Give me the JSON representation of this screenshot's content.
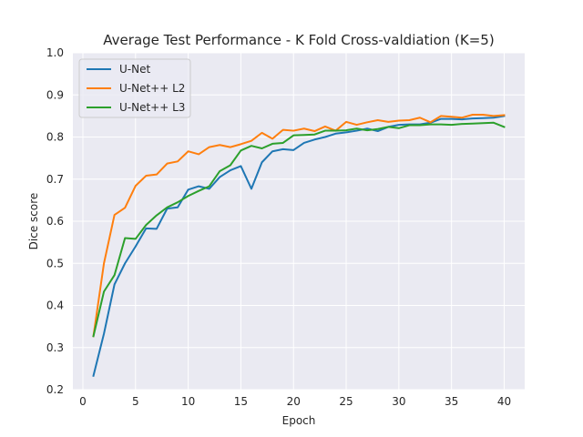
{
  "chart_data": {
    "type": "line",
    "title": "Average Test Performance - K Fold Cross-valdiation (K=5)",
    "xlabel": "Epoch",
    "ylabel": "Dice score",
    "xlim": [
      -0.95,
      41.95
    ],
    "ylim": [
      0.2,
      1.0
    ],
    "xticks": [
      0,
      5,
      10,
      15,
      20,
      25,
      30,
      35,
      40
    ],
    "yticks": [
      0.2,
      0.3,
      0.4,
      0.5,
      0.6,
      0.7,
      0.8,
      0.9,
      1.0
    ],
    "ytick_labels": [
      "0.2",
      "0.3",
      "0.4",
      "0.5",
      "0.6",
      "0.7",
      "0.8",
      "0.9",
      "1.0"
    ],
    "grid": true,
    "legend_position": "upper left",
    "background": "#eaeaf2",
    "x": [
      1,
      2,
      3,
      4,
      5,
      6,
      7,
      8,
      9,
      10,
      11,
      12,
      13,
      14,
      15,
      16,
      17,
      18,
      19,
      20,
      21,
      22,
      23,
      24,
      25,
      26,
      27,
      28,
      29,
      30,
      31,
      32,
      33,
      34,
      35,
      36,
      37,
      38,
      39,
      40
    ],
    "series": [
      {
        "name": "U-Net",
        "color": "#1f77b4",
        "values": [
          0.233,
          0.333,
          0.45,
          0.5,
          0.54,
          0.583,
          0.582,
          0.63,
          0.633,
          0.675,
          0.683,
          0.677,
          0.705,
          0.721,
          0.731,
          0.677,
          0.74,
          0.766,
          0.771,
          0.769,
          0.786,
          0.794,
          0.8,
          0.808,
          0.811,
          0.815,
          0.82,
          0.814,
          0.824,
          0.829,
          0.83,
          0.83,
          0.834,
          0.843,
          0.843,
          0.842,
          0.844,
          0.845,
          0.846,
          0.85
        ]
      },
      {
        "name": "U-Net++ L2",
        "color": "#ff7f0e",
        "values": [
          0.327,
          0.5,
          0.615,
          0.632,
          0.684,
          0.708,
          0.711,
          0.737,
          0.742,
          0.766,
          0.759,
          0.776,
          0.781,
          0.776,
          0.783,
          0.791,
          0.81,
          0.796,
          0.817,
          0.815,
          0.82,
          0.814,
          0.825,
          0.815,
          0.836,
          0.829,
          0.835,
          0.84,
          0.836,
          0.839,
          0.84,
          0.846,
          0.835,
          0.85,
          0.848,
          0.846,
          0.853,
          0.853,
          0.85,
          0.852
        ]
      },
      {
        "name": "U-Net++ L3",
        "color": "#2ca02c",
        "values": [
          0.327,
          0.433,
          0.472,
          0.56,
          0.558,
          0.591,
          0.614,
          0.633,
          0.645,
          0.66,
          0.672,
          0.683,
          0.719,
          0.733,
          0.768,
          0.779,
          0.773,
          0.784,
          0.786,
          0.804,
          0.805,
          0.806,
          0.815,
          0.815,
          0.816,
          0.82,
          0.816,
          0.819,
          0.824,
          0.821,
          0.828,
          0.828,
          0.83,
          0.83,
          0.829,
          0.831,
          0.832,
          0.833,
          0.834,
          0.824
        ]
      }
    ]
  }
}
